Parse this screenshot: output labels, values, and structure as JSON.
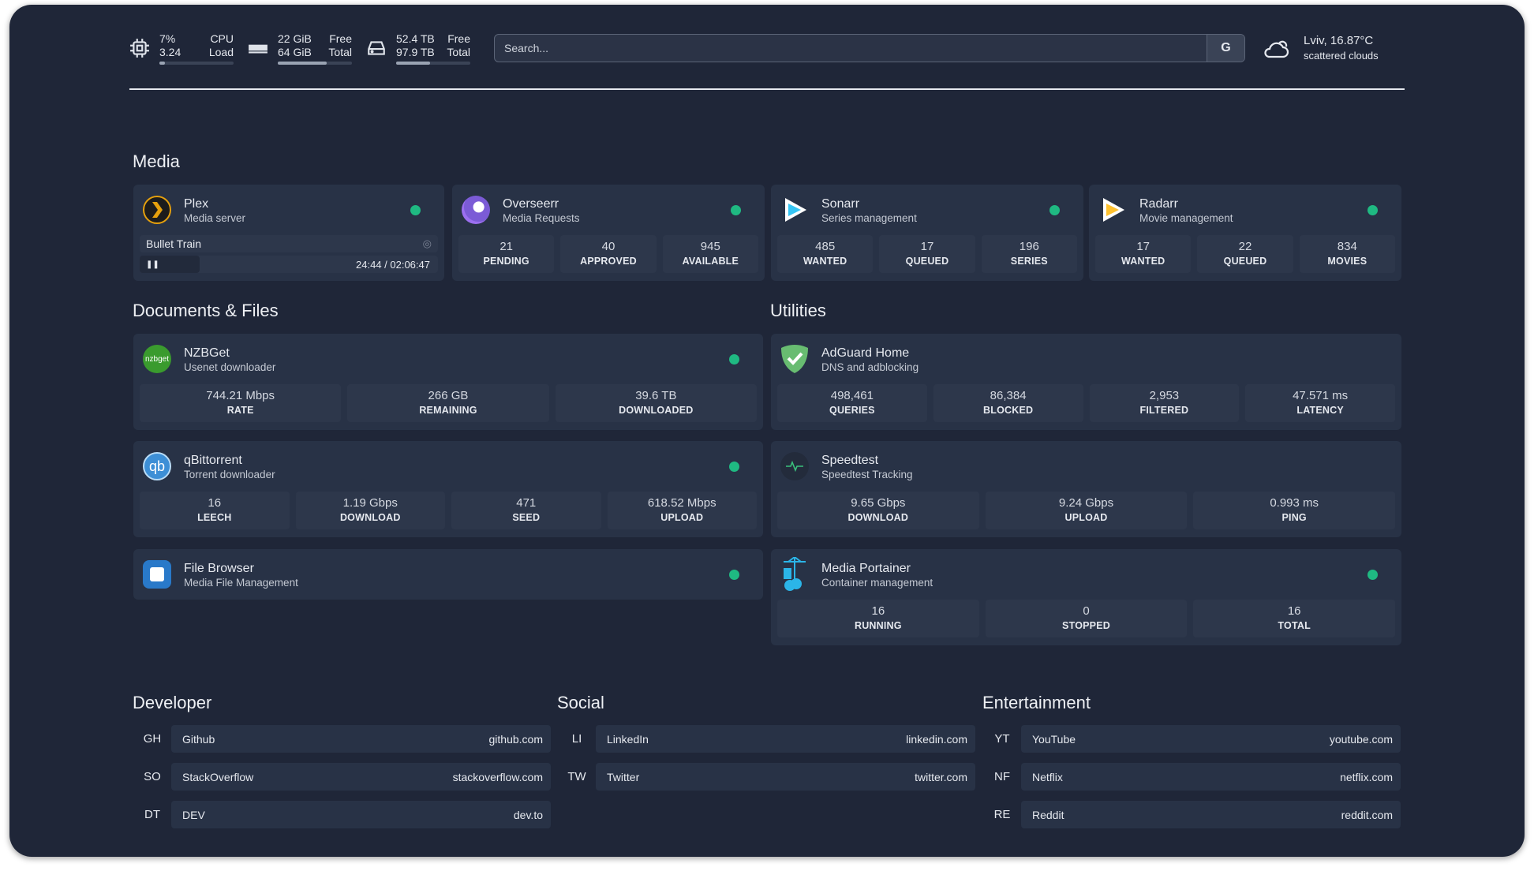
{
  "top": {
    "cpu": {
      "v1": "7%",
      "l1": "CPU",
      "v2": "3.24",
      "l2": "Load",
      "pct": 7
    },
    "mem": {
      "v1": "22 GiB",
      "l1": "Free",
      "v2": "64 GiB",
      "l2": "Total",
      "pct": 66
    },
    "disk": {
      "v1": "52.4 TB",
      "l1": "Free",
      "v2": "97.9 TB",
      "l2": "Total",
      "pct": 46
    },
    "search_placeholder": "Search...",
    "search_engine": "G",
    "weather": {
      "loc": "Lviv, 16.87°C",
      "desc": "scattered clouds"
    }
  },
  "colors": {
    "status_online": "#1fb982",
    "background": "#1f2638",
    "card": "#283246"
  },
  "media": {
    "title": "Media",
    "plex": {
      "name": "Plex",
      "sub": "Media server",
      "now_playing": "Bullet Train",
      "time": "24:44 / 02:06:47",
      "progress_pct": 20
    },
    "cards": [
      {
        "name": "Overseerr",
        "sub": "Media Requests",
        "icon": "overseerr-icon",
        "stats": [
          {
            "v": "21",
            "l": "PENDING"
          },
          {
            "v": "40",
            "l": "APPROVED"
          },
          {
            "v": "945",
            "l": "AVAILABLE"
          }
        ]
      },
      {
        "name": "Sonarr",
        "sub": "Series management",
        "icon": "sonarr-icon",
        "stats": [
          {
            "v": "485",
            "l": "WANTED"
          },
          {
            "v": "17",
            "l": "QUEUED"
          },
          {
            "v": "196",
            "l": "SERIES"
          }
        ]
      },
      {
        "name": "Radarr",
        "sub": "Movie management",
        "icon": "radarr-icon",
        "stats": [
          {
            "v": "17",
            "l": "WANTED"
          },
          {
            "v": "22",
            "l": "QUEUED"
          },
          {
            "v": "834",
            "l": "MOVIES"
          }
        ]
      }
    ]
  },
  "docs": {
    "title": "Documents & Files",
    "nzbget": {
      "name": "NZBGet",
      "sub": "Usenet downloader",
      "logo_text": "nzbget",
      "stats": [
        {
          "v": "744.21 Mbps",
          "l": "RATE"
        },
        {
          "v": "266 GB",
          "l": "REMAINING"
        },
        {
          "v": "39.6 TB",
          "l": "DOWNLOADED"
        }
      ]
    },
    "qbit": {
      "name": "qBittorrent",
      "sub": "Torrent downloader",
      "logo_text": "qb",
      "stats": [
        {
          "v": "16",
          "l": "LEECH"
        },
        {
          "v": "1.19 Gbps",
          "l": "DOWNLOAD"
        },
        {
          "v": "471",
          "l": "SEED"
        },
        {
          "v": "618.52 Mbps",
          "l": "UPLOAD"
        }
      ]
    },
    "fb": {
      "name": "File Browser",
      "sub": "Media File Management"
    }
  },
  "util": {
    "title": "Utilities",
    "adguard": {
      "name": "AdGuard Home",
      "sub": "DNS and adblocking",
      "stats": [
        {
          "v": "498,461",
          "l": "QUERIES"
        },
        {
          "v": "86,384",
          "l": "BLOCKED"
        },
        {
          "v": "2,953",
          "l": "FILTERED"
        },
        {
          "v": "47.571 ms",
          "l": "LATENCY"
        }
      ]
    },
    "speed": {
      "name": "Speedtest",
      "sub": "Speedtest Tracking",
      "stats": [
        {
          "v": "9.65 Gbps",
          "l": "DOWNLOAD"
        },
        {
          "v": "9.24 Gbps",
          "l": "UPLOAD"
        },
        {
          "v": "0.993 ms",
          "l": "PING"
        }
      ]
    },
    "port": {
      "name": "Media Portainer",
      "sub": "Container management",
      "stats": [
        {
          "v": "16",
          "l": "RUNNING"
        },
        {
          "v": "0",
          "l": "STOPPED"
        },
        {
          "v": "16",
          "l": "TOTAL"
        }
      ]
    }
  },
  "bookmarks": [
    {
      "title": "Developer",
      "items": [
        {
          "ab": "GH",
          "name": "Github",
          "url": "github.com"
        },
        {
          "ab": "SO",
          "name": "StackOverflow",
          "url": "stackoverflow.com"
        },
        {
          "ab": "DT",
          "name": "DEV",
          "url": "dev.to"
        }
      ]
    },
    {
      "title": "Social",
      "items": [
        {
          "ab": "LI",
          "name": "LinkedIn",
          "url": "linkedin.com"
        },
        {
          "ab": "TW",
          "name": "Twitter",
          "url": "twitter.com"
        }
      ]
    },
    {
      "title": "Entertainment",
      "items": [
        {
          "ab": "YT",
          "name": "YouTube",
          "url": "youtube.com"
        },
        {
          "ab": "NF",
          "name": "Netflix",
          "url": "netflix.com"
        },
        {
          "ab": "RE",
          "name": "Reddit",
          "url": "reddit.com"
        }
      ]
    }
  ]
}
